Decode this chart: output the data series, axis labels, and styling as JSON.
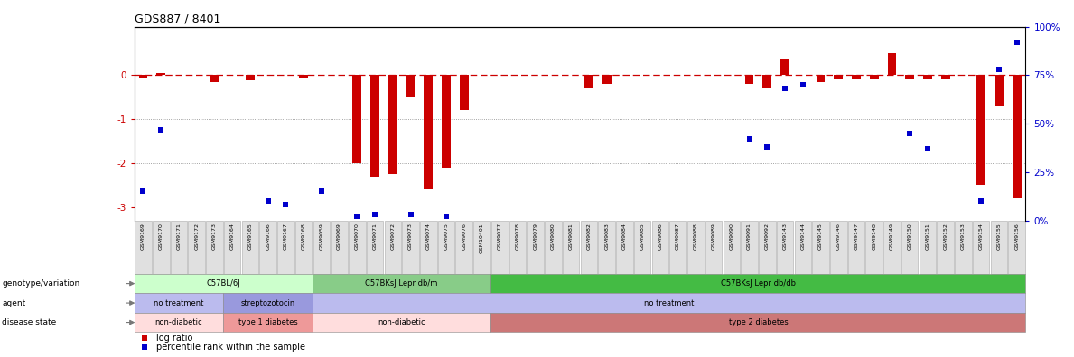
{
  "title": "GDS887 / 8401",
  "samples": [
    "GSM9169",
    "GSM9170",
    "GSM9171",
    "GSM9172",
    "GSM9173",
    "GSM9164",
    "GSM9165",
    "GSM9166",
    "GSM9167",
    "GSM9168",
    "GSM9059",
    "GSM9069",
    "GSM9070",
    "GSM9071",
    "GSM9072",
    "GSM9073",
    "GSM9074",
    "GSM9075",
    "GSM9076",
    "GSM10401",
    "GSM9077",
    "GSM9078",
    "GSM9079",
    "GSM9080",
    "GSM9081",
    "GSM9082",
    "GSM9083",
    "GSM9084",
    "GSM9085",
    "GSM9086",
    "GSM9087",
    "GSM9088",
    "GSM9089",
    "GSM9090",
    "GSM9091",
    "GSM9092",
    "GSM9143",
    "GSM9144",
    "GSM9145",
    "GSM9146",
    "GSM9147",
    "GSM9148",
    "GSM9149",
    "GSM9150",
    "GSM9151",
    "GSM9152",
    "GSM9153",
    "GSM9154",
    "GSM9155",
    "GSM9156"
  ],
  "log_ratio": [
    -0.08,
    0.05,
    0.0,
    0.0,
    -0.15,
    0.0,
    -0.12,
    0.0,
    0.0,
    -0.05,
    0.0,
    0.0,
    -2.0,
    -2.3,
    -2.25,
    -0.5,
    -2.6,
    -2.1,
    -0.8,
    0.0,
    0.0,
    0.0,
    0.0,
    0.0,
    0.0,
    -0.3,
    -0.2,
    0.0,
    0.0,
    0.0,
    0.0,
    0.0,
    0.0,
    0.0,
    -0.2,
    -0.3,
    0.35,
    0.0,
    -0.15,
    -0.1,
    -0.1,
    -0.1,
    0.5,
    -0.1,
    -0.1,
    -0.1,
    0.0,
    -2.5,
    -0.7,
    -2.8
  ],
  "percentile_pct": [
    15,
    47,
    null,
    null,
    null,
    null,
    null,
    10,
    8,
    null,
    15,
    null,
    2,
    3,
    null,
    3,
    null,
    2,
    null,
    null,
    null,
    null,
    null,
    null,
    null,
    null,
    null,
    null,
    null,
    null,
    null,
    null,
    null,
    null,
    42,
    38,
    68,
    70,
    null,
    null,
    null,
    null,
    null,
    45,
    37,
    null,
    null,
    10,
    78,
    92
  ],
  "genotype_groups": [
    {
      "label": "C57BL/6J",
      "start": 0,
      "end": 9,
      "color": "#ccffcc"
    },
    {
      "label": "C57BKsJ Lepr db/m",
      "start": 10,
      "end": 19,
      "color": "#88cc88"
    },
    {
      "label": "C57BKsJ Lepr db/db",
      "start": 20,
      "end": 49,
      "color": "#44bb44"
    }
  ],
  "agent_groups": [
    {
      "label": "no treatment",
      "start": 0,
      "end": 4,
      "color": "#bbbbee"
    },
    {
      "label": "streptozotocin",
      "start": 5,
      "end": 9,
      "color": "#9999dd"
    },
    {
      "label": "no treatment",
      "start": 10,
      "end": 49,
      "color": "#bbbbee"
    }
  ],
  "disease_groups": [
    {
      "label": "non-diabetic",
      "start": 0,
      "end": 4,
      "color": "#ffdddd"
    },
    {
      "label": "type 1 diabetes",
      "start": 5,
      "end": 9,
      "color": "#ee9999"
    },
    {
      "label": "non-diabetic",
      "start": 10,
      "end": 19,
      "color": "#ffdddd"
    },
    {
      "label": "type 2 diabetes",
      "start": 20,
      "end": 49,
      "color": "#cc7777"
    }
  ],
  "ylim_left": [
    -3.3,
    1.1
  ],
  "ylim_right": [
    0,
    100
  ],
  "yticks_left": [
    0,
    -1,
    -2,
    -3
  ],
  "yticks_right": [
    0,
    25,
    50,
    75,
    100
  ],
  "hline_y": 0,
  "dotted_lines": [
    -1,
    -2
  ],
  "bar_color": "#cc0000",
  "scatter_color": "#0000cc",
  "hline_color": "#cc0000",
  "dot_line_color": "#888888",
  "label_genotype": "genotype/variation",
  "label_agent": "agent",
  "label_disease": "disease state",
  "legend_log": "log ratio",
  "legend_pct": "percentile rank within the sample",
  "bg_color": "#ffffff",
  "title_fontsize": 9
}
